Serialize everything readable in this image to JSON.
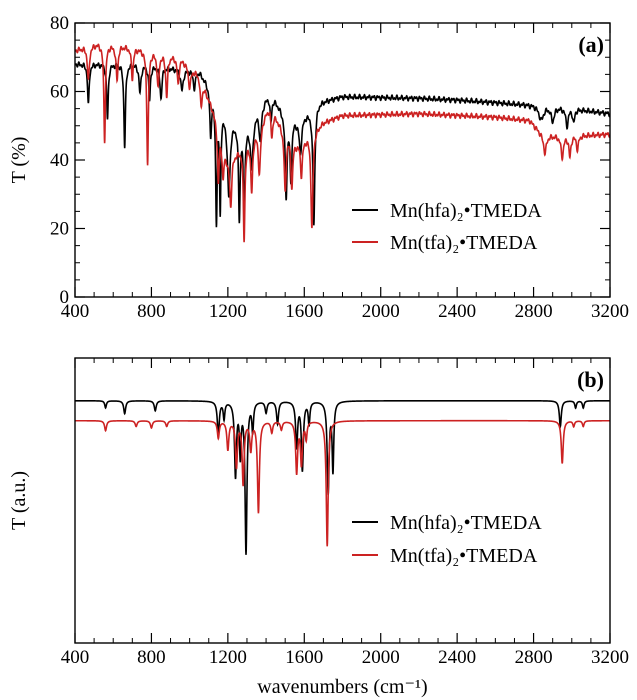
{
  "chart_data": [
    {
      "type": "line",
      "panel_label": "(a)",
      "ylabel": "T  (%)",
      "xlabel": "",
      "xlim": [
        400,
        3200
      ],
      "ylim": [
        0,
        80
      ],
      "xticks": [
        400,
        800,
        1200,
        1600,
        2000,
        2400,
        2800,
        3200
      ],
      "xtick_labels": [
        "400",
        "800",
        "1200",
        "1600",
        "2000",
        "2400",
        "2800",
        "3200"
      ],
      "yticks": [
        0,
        20,
        40,
        60,
        80
      ],
      "ytick_labels": [
        "0",
        "20",
        "40",
        "60",
        "80"
      ],
      "legend_position": "bottom-right",
      "series": [
        {
          "name": "Mn(hfa)₂•TMEDA",
          "color": "#000000",
          "baseline": [
            [
              400,
              68
            ],
            [
              700,
              68
            ],
            [
              1050,
              66
            ],
            [
              1100,
              62
            ],
            [
              1200,
              52
            ],
            [
              1300,
              50
            ],
            [
              1420,
              60
            ],
            [
              1480,
              55
            ],
            [
              1560,
              52
            ],
            [
              1620,
              54
            ],
            [
              1680,
              57
            ],
            [
              1800,
              58.5
            ],
            [
              2200,
              58
            ],
            [
              2400,
              57.5
            ],
            [
              2800,
              56
            ],
            [
              3000,
              55
            ],
            [
              3200,
              53.5
            ]
          ],
          "bands": [
            [
              470,
              5,
              12
            ],
            [
              570,
              5,
              16
            ],
            [
              660,
              5,
              24
            ],
            [
              740,
              6,
              8
            ],
            [
              790,
              5,
              10
            ],
            [
              850,
              6,
              9
            ],
            [
              960,
              8,
              6
            ],
            [
              1025,
              7,
              5
            ],
            [
              1110,
              5,
              14
            ],
            [
              1140,
              5,
              35
            ],
            [
              1160,
              4,
              30
            ],
            [
              1205,
              8,
              22
            ],
            [
              1260,
              5,
              27
            ],
            [
              1285,
              5,
              25
            ],
            [
              1325,
              8,
              14
            ],
            [
              1370,
              7,
              10
            ],
            [
              1425,
              6,
              8
            ],
            [
              1505,
              6,
              24
            ],
            [
              1530,
              6,
              18
            ],
            [
              1580,
              8,
              10
            ],
            [
              1650,
              6,
              34
            ],
            [
              2840,
              15,
              4
            ],
            [
              2900,
              10,
              4
            ],
            [
              2975,
              8,
              5
            ],
            [
              3010,
              6,
              4
            ]
          ],
          "noise": 0.8
        },
        {
          "name": "Mn(tfa)₂•TMEDA",
          "color": "#cc2222",
          "baseline": [
            [
              400,
              72
            ],
            [
              520,
              74
            ],
            [
              700,
              73
            ],
            [
              950,
              70
            ],
            [
              1050,
              65
            ],
            [
              1120,
              55
            ],
            [
              1200,
              40
            ],
            [
              1300,
              45
            ],
            [
              1420,
              56
            ],
            [
              1480,
              50
            ],
            [
              1560,
              45
            ],
            [
              1620,
              47
            ],
            [
              1700,
              51
            ],
            [
              1800,
              53
            ],
            [
              2200,
              53.5
            ],
            [
              2600,
              52.5
            ],
            [
              2780,
              51.5
            ],
            [
              2850,
              47
            ],
            [
              3000,
              47
            ],
            [
              3200,
              47.5
            ]
          ],
          "bands": [
            [
              470,
              6,
              10
            ],
            [
              555,
              5,
              28
            ],
            [
              620,
              6,
              10
            ],
            [
              700,
              6,
              9
            ],
            [
              780,
              5,
              33
            ],
            [
              835,
              6,
              10
            ],
            [
              880,
              6,
              12
            ],
            [
              940,
              6,
              8
            ],
            [
              1000,
              8,
              6
            ],
            [
              1060,
              6,
              8
            ],
            [
              1150,
              5,
              16
            ],
            [
              1175,
              5,
              10
            ],
            [
              1215,
              6,
              14
            ],
            [
              1285,
              5,
              27
            ],
            [
              1325,
              6,
              16
            ],
            [
              1365,
              8,
              14
            ],
            [
              1430,
              6,
              8
            ],
            [
              1500,
              6,
              18
            ],
            [
              1535,
              6,
              14
            ],
            [
              1585,
              6,
              10
            ],
            [
              1640,
              6,
              28
            ],
            [
              2860,
              8,
              5
            ],
            [
              2950,
              8,
              6
            ],
            [
              2990,
              6,
              6
            ],
            [
              3030,
              6,
              4
            ]
          ],
          "noise": 0.8
        }
      ]
    },
    {
      "type": "line",
      "panel_label": "(b)",
      "ylabel": "T (a.u.)",
      "xlabel": "wavenumbers (cm⁻¹)",
      "xlim": [
        400,
        3200
      ],
      "ylim": [
        0,
        10
      ],
      "xticks": [
        400,
        800,
        1200,
        1600,
        2000,
        2400,
        2800,
        3200
      ],
      "xtick_labels": [
        "400",
        "800",
        "1200",
        "1600",
        "2000",
        "2400",
        "2800",
        "3200"
      ],
      "yticks": [],
      "ytick_labels": [],
      "legend_position": "bottom-right",
      "series": [
        {
          "name": "Mn(hfa)₂•TMEDA",
          "color": "#000000",
          "baseline": [
            [
              400,
              8.5
            ],
            [
              3200,
              8.5
            ]
          ],
          "bands": [
            [
              560,
              5,
              0.25
            ],
            [
              660,
              6,
              0.45
            ],
            [
              820,
              6,
              0.35
            ],
            [
              1150,
              6,
              1.2
            ],
            [
              1180,
              5,
              0.6
            ],
            [
              1240,
              6,
              2.6
            ],
            [
              1265,
              5,
              1.8
            ],
            [
              1295,
              6,
              5.3
            ],
            [
              1330,
              5,
              1.0
            ],
            [
              1400,
              6,
              0.4
            ],
            [
              1460,
              6,
              0.8
            ],
            [
              1560,
              6,
              1.6
            ],
            [
              1590,
              6,
              2.4
            ],
            [
              1625,
              5,
              0.8
            ],
            [
              1725,
              6,
              3.2
            ],
            [
              1750,
              5,
              2.4
            ],
            [
              2940,
              6,
              0.9
            ],
            [
              3020,
              5,
              0.25
            ],
            [
              3060,
              5,
              0.25
            ]
          ],
          "noise": 0
        },
        {
          "name": "Mn(tfa)₂•TMEDA",
          "color": "#cc2222",
          "baseline": [
            [
              400,
              7.8
            ],
            [
              3200,
              7.8
            ]
          ],
          "bands": [
            [
              560,
              6,
              0.35
            ],
            [
              720,
              6,
              0.2
            ],
            [
              800,
              6,
              0.25
            ],
            [
              880,
              6,
              0.2
            ],
            [
              1150,
              6,
              0.6
            ],
            [
              1200,
              6,
              1.0
            ],
            [
              1245,
              6,
              1.6
            ],
            [
              1280,
              6,
              2.2
            ],
            [
              1320,
              6,
              1.0
            ],
            [
              1360,
              6,
              3.2
            ],
            [
              1430,
              6,
              0.4
            ],
            [
              1480,
              6,
              0.3
            ],
            [
              1560,
              6,
              1.8
            ],
            [
              1585,
              6,
              1.5
            ],
            [
              1610,
              5,
              0.6
            ],
            [
              1720,
              6,
              4.4
            ],
            [
              2950,
              6,
              1.5
            ],
            [
              3010,
              5,
              0.2
            ],
            [
              3060,
              5,
              0.2
            ]
          ],
          "noise": 0
        }
      ]
    }
  ]
}
